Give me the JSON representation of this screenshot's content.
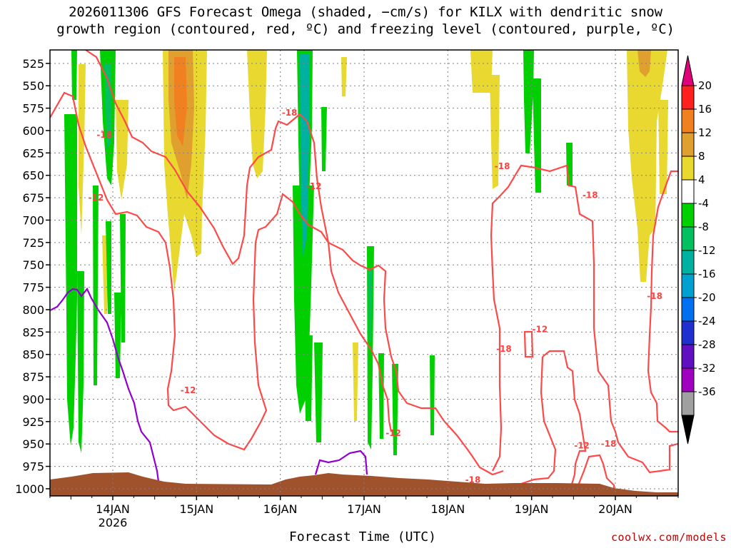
{
  "title_line1": "2026011306 GFS Forecast Omega (shaded, −cm/s) for KILX with dendritic snow",
  "title_line2": "growth region (contoured, red, ºC) and freezing level (contoured, purple, ºC)",
  "xlabel": "Forecast Time (UTC)",
  "credit": "coolwx.com/models",
  "chart_data": {
    "type": "heatmap",
    "ylabel": "",
    "y_ticks": [
      525,
      550,
      575,
      600,
      625,
      650,
      675,
      700,
      725,
      750,
      775,
      800,
      825,
      850,
      875,
      900,
      925,
      950,
      975,
      1000
    ],
    "y_range": [
      1008,
      510
    ],
    "x_ticks": [
      {
        "label": "14JAN",
        "sub": "2026",
        "day": 14
      },
      {
        "label": "15JAN",
        "day": 15
      },
      {
        "label": "16JAN",
        "day": 16
      },
      {
        "label": "17JAN",
        "day": 17
      },
      {
        "label": "18JAN",
        "day": 18
      },
      {
        "label": "19JAN",
        "day": 19
      },
      {
        "label": "20JAN",
        "day": 20
      }
    ],
    "x_range": [
      13.25,
      20.75
    ],
    "grid": true,
    "colorbar": {
      "levels": [
        "20",
        "16",
        "12",
        "8",
        "4",
        "-4",
        "-8",
        "-12",
        "-16",
        "-20",
        "-24",
        "-28",
        "-32",
        "-36"
      ],
      "colors": [
        "#ff2020",
        "#f08020",
        "#e0a030",
        "#e8d830",
        "#ffffff",
        "#00d000",
        "#00c060",
        "#00b0a0",
        "#00a0d0",
        "#0070f0",
        "#2030d0",
        "#6010c0",
        "#a000c0",
        "#a0a0a0"
      ],
      "top_color": "#e0007a",
      "bottom_color": "#000000"
    },
    "contour_labels": [
      {
        "text": "-18",
        "day": 13.9,
        "p": 605
      },
      {
        "text": "-12",
        "day": 13.8,
        "p": 675
      },
      {
        "text": "-18",
        "day": 16.11,
        "p": 580
      },
      {
        "text": "-12",
        "day": 16.4,
        "p": 662
      },
      {
        "text": "-12",
        "day": 14.9,
        "p": 890
      },
      {
        "text": "-18",
        "day": 18.65,
        "p": 640
      },
      {
        "text": "-18",
        "day": 19.7,
        "p": 672
      },
      {
        "text": "-12",
        "day": 19.1,
        "p": 822
      },
      {
        "text": "-18",
        "day": 18.67,
        "p": 844
      },
      {
        "text": "-12",
        "day": 17.35,
        "p": 938
      },
      {
        "text": "-18",
        "day": 18.3,
        "p": 990
      },
      {
        "text": "-12",
        "day": 19.6,
        "p": 952
      },
      {
        "text": "-18",
        "day": 19.92,
        "p": 950
      },
      {
        "text": "-18",
        "day": 20.47,
        "p": 785
      }
    ]
  }
}
